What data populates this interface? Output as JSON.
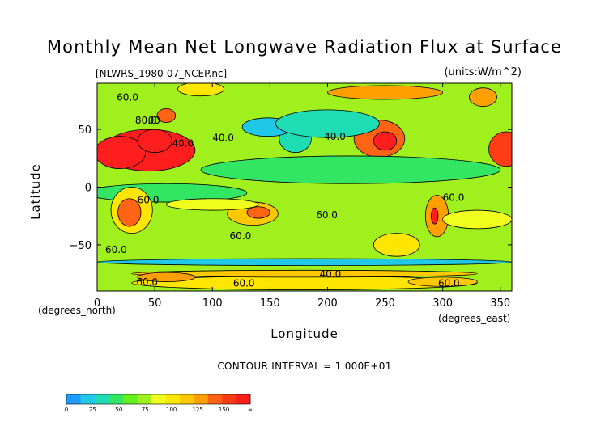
{
  "chart_data": {
    "type": "heatmap",
    "title": "Monthly Mean Net Longwave Radiation Flux at Surface",
    "subtitle": "[NLWRS_1980-07_NCEP.nc]",
    "units": "(units:W/m^2)",
    "xlabel": "Longitude",
    "ylabel": "Latitude",
    "x_units_label": "(degrees_east)",
    "y_units_label": "(degrees_north)",
    "contour_interval_label": "CONTOUR INTERVAL = 1.000E+01",
    "contour_interval": 10,
    "xlim": [
      0,
      360
    ],
    "ylim": [
      -90,
      90
    ],
    "x_ticks": [
      0,
      50,
      100,
      150,
      200,
      250,
      300,
      350
    ],
    "y_ticks": [
      50,
      0,
      -50
    ],
    "y_tick_labels": [
      "50",
      "0",
      "−50"
    ],
    "contour_labels": [
      {
        "text": "60.0",
        "lon": 17,
        "lat": 75
      },
      {
        "text": "80.0",
        "lon": 33,
        "lat": 55
      },
      {
        "text": "00",
        "lon": 44,
        "lat": 55
      },
      {
        "text": "40.0",
        "lon": 65,
        "lat": 35
      },
      {
        "text": "40.0",
        "lon": 100,
        "lat": 40
      },
      {
        "text": "40.0",
        "lon": 197,
        "lat": 41
      },
      {
        "text": "60.0",
        "lon": 35,
        "lat": -14
      },
      {
        "text": "60.0",
        "lon": 115,
        "lat": -45
      },
      {
        "text": "60.0",
        "lon": 7,
        "lat": -57
      },
      {
        "text": "60.0",
        "lon": 190,
        "lat": -27
      },
      {
        "text": "60.0",
        "lon": 300,
        "lat": -12
      },
      {
        "text": "40.0",
        "lon": 193,
        "lat": -78
      },
      {
        "text": "60.0",
        "lon": 34,
        "lat": -85
      },
      {
        "text": "60.0",
        "lon": 118,
        "lat": -86
      },
      {
        "text": "60.0",
        "lon": 296,
        "lat": -86
      }
    ],
    "regions": [
      {
        "lon": 45,
        "lat": 32,
        "rlon": 40,
        "rlat": 18,
        "value": 150
      },
      {
        "lon": 20,
        "lat": 30,
        "rlon": 22,
        "rlat": 14,
        "value": 155
      },
      {
        "lon": 50,
        "lat": 40,
        "rlon": 15,
        "rlat": 10,
        "value": 165
      },
      {
        "lon": 355,
        "lat": 33,
        "rlon": 15,
        "rlat": 15,
        "value": 145
      },
      {
        "lon": 245,
        "lat": 42,
        "rlon": 22,
        "rlat": 16,
        "value": 125
      },
      {
        "lon": 250,
        "lat": 40,
        "rlon": 10,
        "rlat": 8,
        "value": 150
      },
      {
        "lon": 172,
        "lat": 42,
        "rlon": 14,
        "rlat": 12,
        "value": 25
      },
      {
        "lon": 148,
        "lat": 52,
        "rlon": 22,
        "rlat": 8,
        "value": 20
      },
      {
        "lon": 200,
        "lat": 55,
        "rlon": 45,
        "rlat": 12,
        "value": 35
      },
      {
        "lon": 220,
        "lat": 15,
        "rlon": 130,
        "rlat": 12,
        "value": 45
      },
      {
        "lon": 60,
        "lat": -5,
        "rlon": 70,
        "rlat": 8,
        "value": 45
      },
      {
        "lon": 30,
        "lat": -20,
        "rlon": 18,
        "rlat": 20,
        "value": 90
      },
      {
        "lon": 28,
        "lat": -22,
        "rlon": 10,
        "rlat": 12,
        "value": 130
      },
      {
        "lon": 135,
        "lat": -23,
        "rlon": 22,
        "rlat": 10,
        "value": 110
      },
      {
        "lon": 140,
        "lat": -22,
        "rlon": 10,
        "rlat": 5,
        "value": 125
      },
      {
        "lon": 295,
        "lat": -25,
        "rlon": 10,
        "rlat": 18,
        "value": 115
      },
      {
        "lon": 293,
        "lat": -25,
        "rlon": 3,
        "rlat": 7,
        "value": 160
      },
      {
        "lon": 260,
        "lat": -50,
        "rlon": 20,
        "rlat": 10,
        "value": 95
      },
      {
        "lon": 330,
        "lat": -28,
        "rlon": 30,
        "rlat": 8,
        "value": 85
      },
      {
        "lon": 100,
        "lat": -15,
        "rlon": 40,
        "rlat": 5,
        "value": 80
      },
      {
        "lon": 250,
        "lat": 82,
        "rlon": 50,
        "rlat": 6,
        "value": 115
      },
      {
        "lon": 335,
        "lat": 78,
        "rlon": 12,
        "rlat": 8,
        "value": 120
      },
      {
        "lon": 60,
        "lat": 62,
        "rlon": 8,
        "rlat": 6,
        "value": 125
      },
      {
        "lon": 90,
        "lat": 85,
        "rlon": 20,
        "rlat": 6,
        "value": 90
      },
      {
        "lon": 180,
        "lat": -83,
        "rlon": 150,
        "rlat": 6,
        "value": 90
      },
      {
        "lon": 300,
        "lat": -82,
        "rlon": 30,
        "rlat": 4,
        "value": 110
      },
      {
        "lon": 180,
        "lat": -65,
        "rlon": 180,
        "rlat": 3,
        "value": 20
      },
      {
        "lon": 180,
        "lat": -75,
        "rlon": 150,
        "rlat": 3,
        "value": 100
      },
      {
        "lon": 60,
        "lat": -78,
        "rlon": 25,
        "rlat": 4,
        "value": 115
      }
    ],
    "colorbar": {
      "ticks": [
        "0",
        "25",
        "50",
        "75",
        "100",
        "125",
        "150",
        "∞"
      ],
      "colors": [
        "#1e9bff",
        "#1ec8e6",
        "#1edcb4",
        "#32e664",
        "#64f01e",
        "#a0f01e",
        "#f0ff1e",
        "#ffe600",
        "#ffc800",
        "#ffa000",
        "#ff6414",
        "#ff3c14",
        "#ff1e1e"
      ]
    }
  }
}
